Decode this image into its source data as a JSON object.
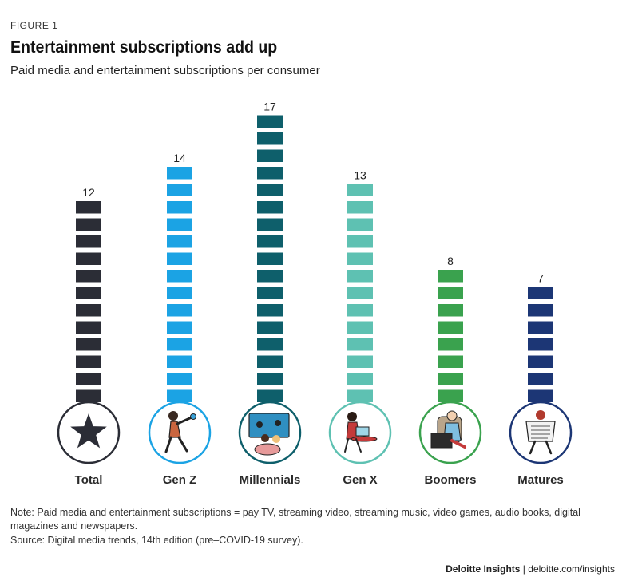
{
  "figure_label": "FIGURE 1",
  "chart_data": {
    "type": "bar",
    "title": "Entertainment subscriptions add up",
    "subtitle": "Paid media and entertainment subscriptions per consumer",
    "categories": [
      "Total",
      "Gen Z",
      "Millennials",
      "Gen X",
      "Boomers",
      "Matures"
    ],
    "values": [
      12,
      14,
      17,
      13,
      8,
      7
    ],
    "colors": [
      "#2b2d36",
      "#1ba3e4",
      "#0e5f6b",
      "#5ec1b2",
      "#3aa24e",
      "#1c3675"
    ],
    "icons": [
      "star-icon",
      "person-punching-icon",
      "couple-watching-tv-icon",
      "woman-on-laptop-icon",
      "person-watching-tv-icon",
      "person-reading-newspaper-icon"
    ],
    "xlabel": "",
    "ylabel": "",
    "ylim": [
      0,
      17
    ]
  },
  "note": "Note: Paid media and entertainment subscriptions = pay TV, streaming video, streaming music, video games, audio books, digital magazines and newspapers.",
  "source": "Source: Digital media trends, 14th edition (pre–COVID-19 survey).",
  "footer": {
    "brand": "Deloitte Insights",
    "separator": "|",
    "url": "deloitte.com/insights"
  }
}
